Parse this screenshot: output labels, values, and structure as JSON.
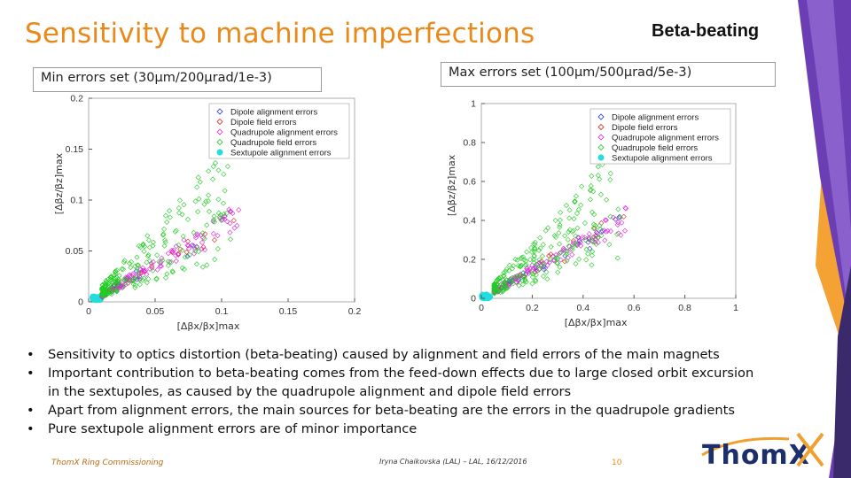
{
  "slide": {
    "title": "Sensitivity to machine imperfections",
    "topic": "Beta-beating"
  },
  "panels": {
    "left_label": "Min errors set (30μm/200μrad/1e-3)",
    "right_label": "Max errors set (100μm/500μrad/5e-3)"
  },
  "chart_data": [
    {
      "type": "scatter",
      "title": "",
      "xlabel": "[Δβx/βx]max",
      "ylabel": "[Δβz/βz]max",
      "xlim": [
        0,
        0.2
      ],
      "ylim": [
        0,
        0.2
      ],
      "xticks": [
        "0",
        "0.05",
        "0.1",
        "0.15",
        "0.2"
      ],
      "yticks": [
        "0",
        "0.05",
        "0.1",
        "0.15",
        "0.2"
      ],
      "legend_position": "top-right",
      "grid": false,
      "series": [
        {
          "name": "Dipole alignment errors",
          "color": "#2233dd"
        },
        {
          "name": "Dipole field errors",
          "color": "#dd2222"
        },
        {
          "name": "Quadrupole alignment errors",
          "color": "#dd22dd"
        },
        {
          "name": "Quadrupole field errors",
          "color": "#22cc22"
        },
        {
          "name": "Sextupole alignment errors",
          "color": "#22dddd"
        }
      ]
    },
    {
      "type": "scatter",
      "title": "",
      "xlabel": "[Δβx/βx]max",
      "ylabel": "[Δβz/βz]max",
      "xlim": [
        0,
        1
      ],
      "ylim": [
        0,
        1
      ],
      "xticks": [
        "0",
        "0.2",
        "0.4",
        "0.6",
        "0.8",
        "1"
      ],
      "yticks": [
        "0",
        "0.2",
        "0.4",
        "0.6",
        "0.8",
        "1"
      ],
      "legend_position": "top-right",
      "grid": false,
      "series": [
        {
          "name": "Dipole alignment errors",
          "color": "#2233dd"
        },
        {
          "name": "Dipole field errors",
          "color": "#dd2222"
        },
        {
          "name": "Quadrupole alignment errors",
          "color": "#dd22dd"
        },
        {
          "name": "Quadrupole field errors",
          "color": "#22cc22"
        },
        {
          "name": "Sextupole alignment errors",
          "color": "#22dddd"
        }
      ]
    }
  ],
  "bullets": [
    {
      "lines": [
        "Sensitivity to optics distortion (beta-beating) caused by alignment and field errors of the main magnets"
      ]
    },
    {
      "lines": [
        "Important contribution to beta-beating comes from the feed-down effects due to large closed orbit excursion",
        "in the sextupoles, as caused by the quadrupole alignment and dipole field errors"
      ]
    },
    {
      "lines": [
        "Apart from alignment errors, the main sources for beta-beating are the errors in the quadrupole gradients"
      ]
    },
    {
      "lines": [
        "Pure sextupole alignment errors are of minor importance"
      ]
    }
  ],
  "footer": {
    "left": "ThomX Ring Commissioning",
    "middle": "Iryna Chaikovska (LAL) – LAL, 16/12/2016",
    "page": "10"
  },
  "logo": {
    "text": "ThomX"
  },
  "colors": {
    "accent": "#e8891a",
    "deco_purple": "#6a3fb0",
    "deco_orange": "#f0a030"
  }
}
